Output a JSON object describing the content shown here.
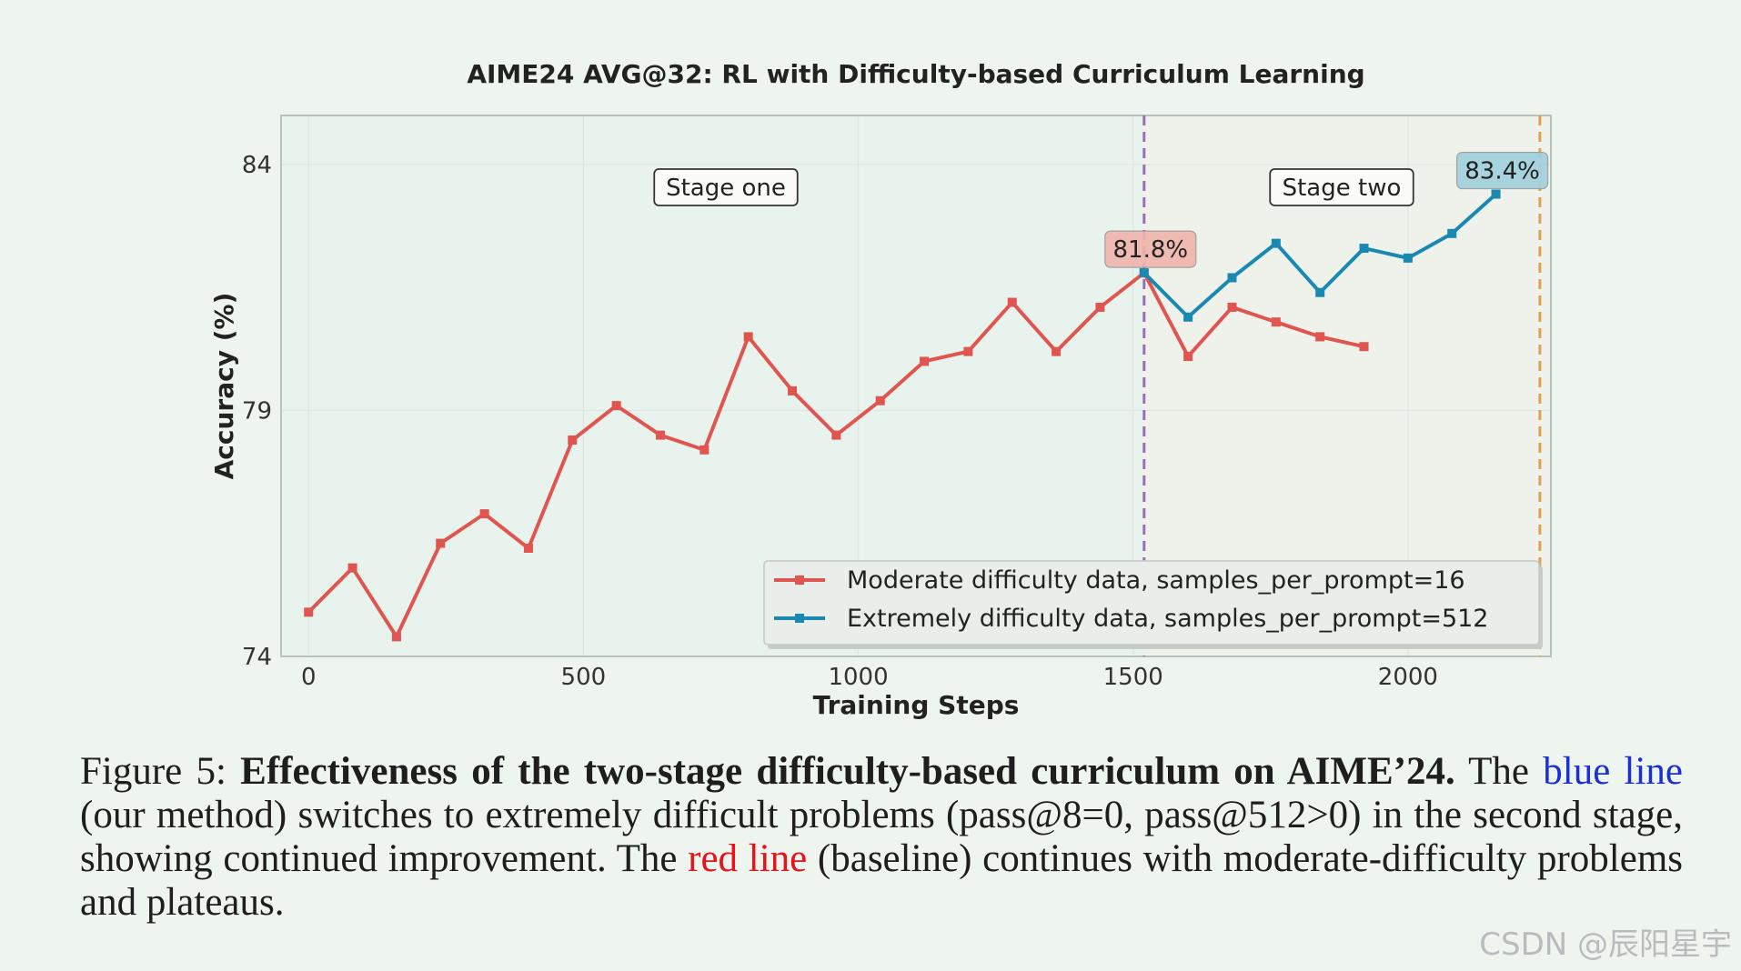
{
  "chart_data": {
    "type": "line",
    "title": "AIME24 AVG@32: RL with Difficulty-based Curriculum Learning",
    "xlabel": "Training Steps",
    "ylabel": "Accuracy (%)",
    "xlim": [
      -50,
      2260
    ],
    "ylim": [
      74,
      85
    ],
    "x_ticks": [
      0,
      500,
      1000,
      1500,
      2000
    ],
    "y_ticks": [
      74,
      79,
      84
    ],
    "grid": true,
    "legend_position": "lower-right",
    "stage_boundaries": [
      1520,
      2240
    ],
    "regions": [
      {
        "label": "Stage one",
        "x_start": -50,
        "x_end": 1520,
        "color": "#e7f3ec"
      },
      {
        "label": "Stage two",
        "x_start": 1520,
        "x_end": 2260,
        "color": "#eef2ea"
      }
    ],
    "series": [
      {
        "name": "Moderate difficulty data, samples_per_prompt=16",
        "color": "#e05550",
        "x": [
          0,
          80,
          160,
          240,
          320,
          400,
          480,
          560,
          640,
          720,
          800,
          880,
          960,
          1040,
          1120,
          1200,
          1280,
          1360,
          1440,
          1520,
          1600,
          1680,
          1760,
          1840,
          1920
        ],
        "y": [
          74.9,
          75.8,
          74.4,
          76.3,
          76.9,
          76.2,
          78.4,
          79.1,
          78.5,
          78.2,
          80.5,
          79.4,
          78.5,
          79.2,
          80.0,
          80.2,
          81.2,
          80.2,
          81.1,
          81.8,
          80.1,
          81.1,
          80.8,
          80.5,
          80.3
        ]
      },
      {
        "name": "Extremely difficulty data, samples_per_prompt=512",
        "color": "#1a89b2",
        "x": [
          1520,
          1600,
          1680,
          1760,
          1840,
          1920,
          2000,
          2080,
          2160
        ],
        "y": [
          81.8,
          80.9,
          81.7,
          82.4,
          81.4,
          82.3,
          82.1,
          82.6,
          83.4
        ]
      }
    ],
    "annotations": [
      {
        "text": "81.8%",
        "x": 1520,
        "y": 81.8,
        "color": "#f0b4ac"
      },
      {
        "text": "83.4%",
        "x": 2160,
        "y": 83.4,
        "color": "#9fd0dc"
      }
    ]
  },
  "caption": {
    "prefix": "Figure 5: ",
    "bold": "Effectiveness of the two-stage difficulty-based curriculum on AIME’24.",
    "text1": " The ",
    "blue_line": "blue line",
    "text2": " (our method) switches to extremely difficult problems (pass@8=0, pass@512>0) in the second stage, showing continued improvement. The ",
    "red_line": "red line",
    "text3": " (baseline) continues with moderate-difficulty problems and plateaus."
  },
  "watermark": "CSDN @辰阳星宇"
}
